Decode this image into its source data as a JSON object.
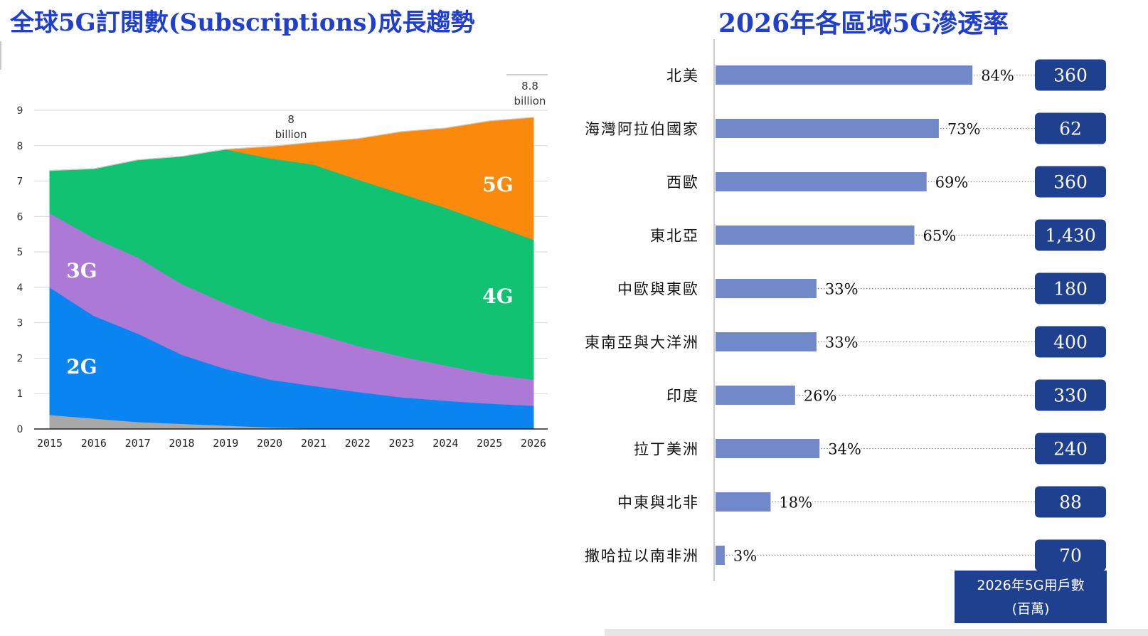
{
  "left_title": "全球5G訂閱數(Subscriptions)成長趨勢",
  "right_title": "2026年各區域5G滲透率",
  "colors": {
    "title": "#1f3fcc",
    "g2": "#0a84f0",
    "g3": "#ac79d6",
    "g4": "#11c272",
    "g5": "#fb8a0c",
    "other": "#a8a8a8",
    "bar": "#7188c9",
    "badge": "#1f3f8f"
  },
  "chart_data": [
    {
      "type": "area",
      "title": "全球5G訂閱數(Subscriptions)成長趨勢",
      "x": [
        "2015",
        "2016",
        "2017",
        "2018",
        "2019",
        "2020",
        "2021",
        "2022",
        "2023",
        "2024",
        "2025",
        "2026"
      ],
      "ylim": [
        0,
        9
      ],
      "yticks": [
        "0",
        "1",
        "2",
        "3",
        "4",
        "5",
        "6",
        "7",
        "8",
        "9"
      ],
      "grid": true,
      "stacked": true,
      "series": [
        {
          "name": "",
          "key": "other",
          "values": [
            0.4,
            0.3,
            0.2,
            0.15,
            0.1,
            0.05,
            0.02,
            0,
            0,
            0,
            0,
            0
          ]
        },
        {
          "name": "2G",
          "key": "g2",
          "values": [
            3.6,
            2.9,
            2.5,
            1.95,
            1.6,
            1.35,
            1.2,
            1.05,
            0.9,
            0.8,
            0.72,
            0.66
          ]
        },
        {
          "name": "3G",
          "key": "g3",
          "values": [
            2.1,
            2.2,
            2.15,
            2.0,
            1.85,
            1.65,
            1.5,
            1.3,
            1.15,
            1.0,
            0.83,
            0.74
          ]
        },
        {
          "name": "4G",
          "key": "g4",
          "values": [
            1.2,
            1.95,
            2.75,
            3.6,
            4.35,
            4.6,
            4.75,
            4.7,
            4.6,
            4.45,
            4.25,
            3.95
          ]
        },
        {
          "name": "5G",
          "key": "g5",
          "values": [
            0,
            0,
            0,
            0,
            0,
            0.33,
            0.63,
            1.15,
            1.75,
            2.25,
            2.9,
            3.45
          ]
        }
      ],
      "annotations": [
        {
          "text_lines": [
            "8",
            "billion"
          ],
          "x": "2020",
          "y": 8.0
        },
        {
          "text_lines": [
            "8.8",
            "billion"
          ],
          "x": "2026",
          "y": 8.8
        }
      ]
    },
    {
      "type": "bar",
      "orientation": "horizontal",
      "title": "2026年各區域5G滲透率",
      "categories": [
        "北美",
        "海灣阿拉伯國家",
        "西歐",
        "東北亞",
        "中歐與東歐",
        "東南亞與大洋洲",
        "印度",
        "拉丁美洲",
        "中東與北非",
        "撒哈拉以南非洲"
      ],
      "values": [
        84,
        73,
        69,
        65,
        33,
        33,
        26,
        34,
        18,
        3
      ],
      "value_labels": [
        "84%",
        "73%",
        "69%",
        "65%",
        "33%",
        "33%",
        "26%",
        "34%",
        "18%",
        "3%"
      ],
      "xlim": [
        0,
        100
      ],
      "side_column": {
        "values": [
          360,
          62,
          360,
          1430,
          180,
          400,
          330,
          240,
          88,
          70
        ],
        "labels": [
          "360",
          "62",
          "360",
          "1,430",
          "180",
          "400",
          "330",
          "240",
          "88",
          "70"
        ],
        "header_lines": [
          "2026年5G用戶數",
          "(百萬)"
        ]
      }
    }
  ]
}
